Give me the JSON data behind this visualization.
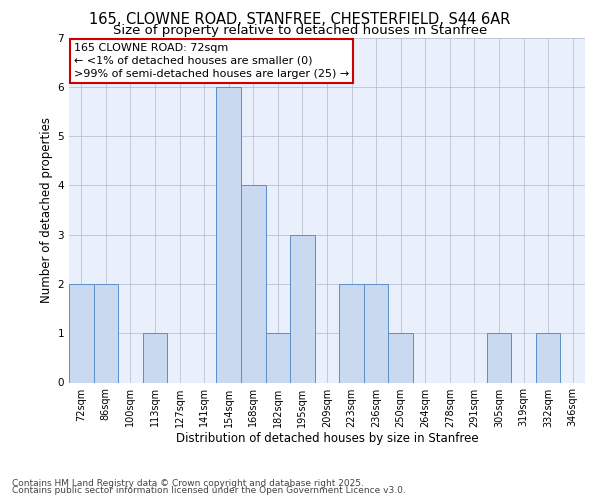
{
  "title_line1": "165, CLOWNE ROAD, STANFREE, CHESTERFIELD, S44 6AR",
  "title_line2": "Size of property relative to detached houses in Stanfree",
  "xlabel": "Distribution of detached houses by size in Stanfree",
  "ylabel": "Number of detached properties",
  "categories": [
    "72sqm",
    "86sqm",
    "100sqm",
    "113sqm",
    "127sqm",
    "141sqm",
    "154sqm",
    "168sqm",
    "182sqm",
    "195sqm",
    "209sqm",
    "223sqm",
    "236sqm",
    "250sqm",
    "264sqm",
    "278sqm",
    "291sqm",
    "305sqm",
    "319sqm",
    "332sqm",
    "346sqm"
  ],
  "values": [
    2,
    2,
    0,
    1,
    0,
    0,
    6,
    4,
    1,
    3,
    0,
    2,
    2,
    1,
    0,
    0,
    0,
    1,
    0,
    1,
    0
  ],
  "bar_color": "#c9d9f0",
  "bar_edge_color": "#5b8fc9",
  "background_color": "#eaf0fb",
  "annotation_text": "165 CLOWNE ROAD: 72sqm\n← <1% of detached houses are smaller (0)\n>99% of semi-detached houses are larger (25) →",
  "annotation_box_color": "#ffffff",
  "annotation_box_edge": "#cc0000",
  "footer_line1": "Contains HM Land Registry data © Crown copyright and database right 2025.",
  "footer_line2": "Contains public sector information licensed under the Open Government Licence v3.0.",
  "ylim": [
    0,
    7
  ],
  "yticks": [
    0,
    1,
    2,
    3,
    4,
    5,
    6,
    7
  ],
  "title_fontsize": 10.5,
  "subtitle_fontsize": 9.5,
  "axis_label_fontsize": 8.5,
  "tick_fontsize": 7,
  "annotation_fontsize": 8,
  "footer_fontsize": 6.5
}
